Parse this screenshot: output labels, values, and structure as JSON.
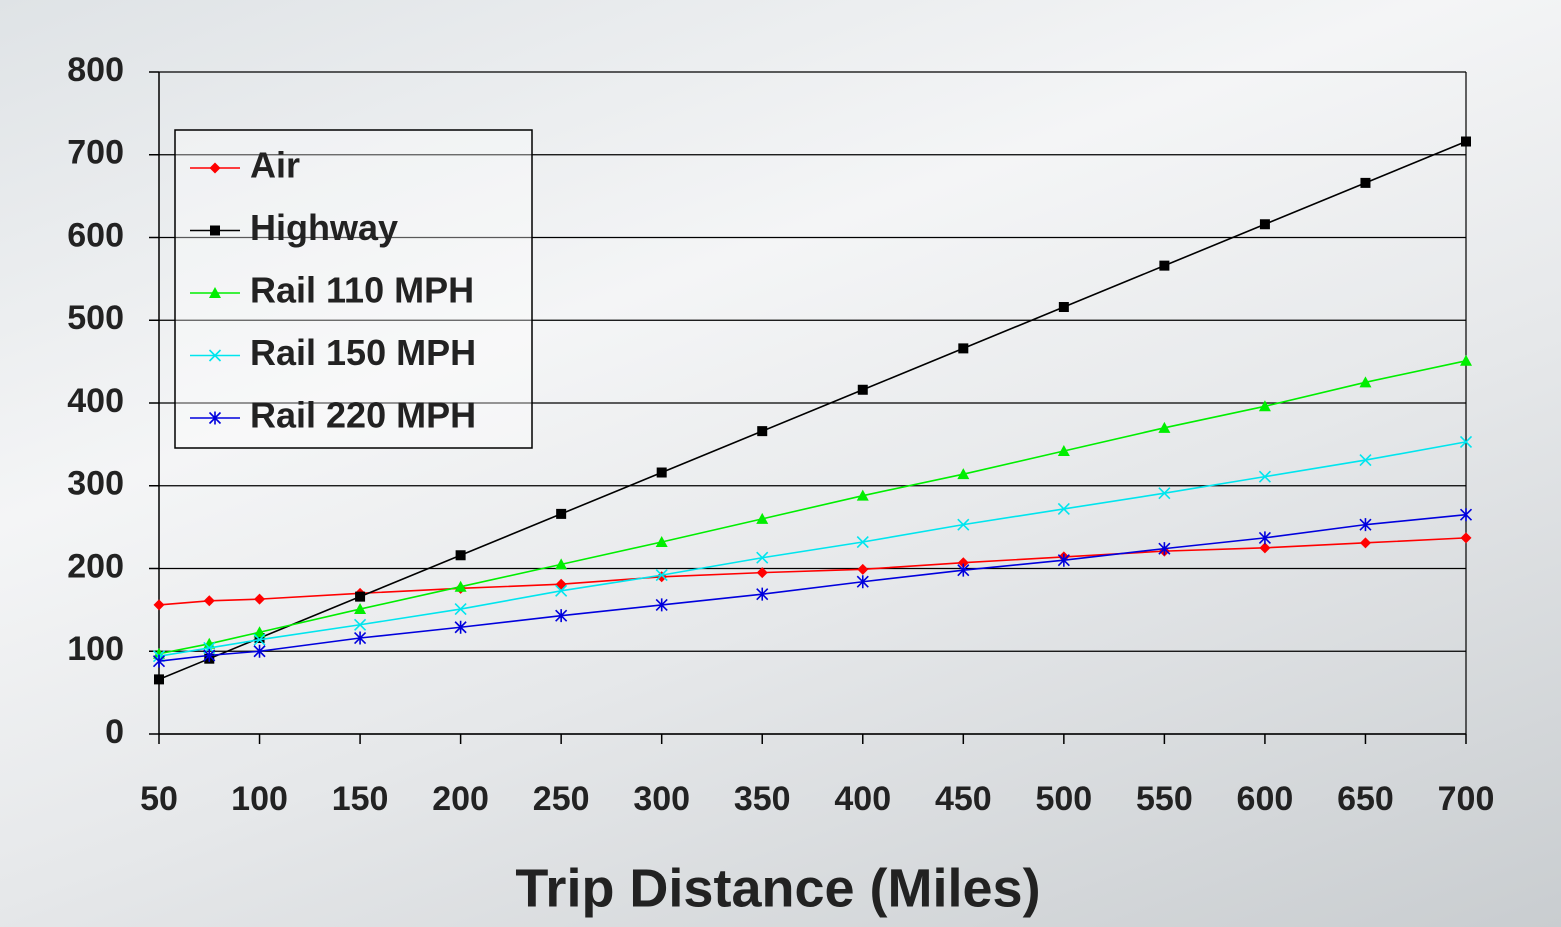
{
  "chart_data": {
    "type": "line",
    "x_label": "Trip Distance (Miles)",
    "x": [
      50,
      75,
      100,
      150,
      200,
      250,
      300,
      350,
      400,
      450,
      500,
      550,
      600,
      650,
      700
    ],
    "xlim": [
      50,
      700
    ],
    "xticks": [
      50,
      100,
      150,
      200,
      250,
      300,
      350,
      400,
      450,
      500,
      550,
      600,
      650,
      700
    ],
    "ylim": [
      0,
      800
    ],
    "yticks": [
      0,
      100,
      200,
      300,
      400,
      500,
      600,
      700,
      800
    ],
    "grid": true,
    "legend": "upper-left",
    "series": [
      {
        "name": "Air",
        "color": "#ff0000",
        "marker": "diamond",
        "values": [
          156,
          161,
          163,
          170,
          176,
          181,
          190,
          195,
          199,
          207,
          214,
          221,
          225,
          231,
          237
        ]
      },
      {
        "name": "Highway",
        "color": "#000000",
        "marker": "square",
        "values": [
          66,
          91,
          116,
          166,
          216,
          266,
          316,
          366,
          416,
          466,
          516,
          566,
          616,
          666,
          716
        ]
      },
      {
        "name": "Rail 110 MPH",
        "color": "#00ee00",
        "marker": "triangle",
        "values": [
          97,
          109,
          123,
          151,
          178,
          205,
          232,
          260,
          288,
          314,
          342,
          370,
          396,
          425,
          451
        ]
      },
      {
        "name": "Rail 150 MPH",
        "color": "#00e5ee",
        "marker": "x",
        "values": [
          94,
          104,
          114,
          132,
          151,
          173,
          192,
          213,
          232,
          253,
          272,
          291,
          311,
          331,
          353
        ]
      },
      {
        "name": "Rail 220 MPH",
        "color": "#0000dd",
        "marker": "star",
        "values": [
          88,
          95,
          100,
          116,
          129,
          143,
          156,
          169,
          184,
          198,
          210,
          224,
          237,
          253,
          265
        ]
      }
    ]
  }
}
